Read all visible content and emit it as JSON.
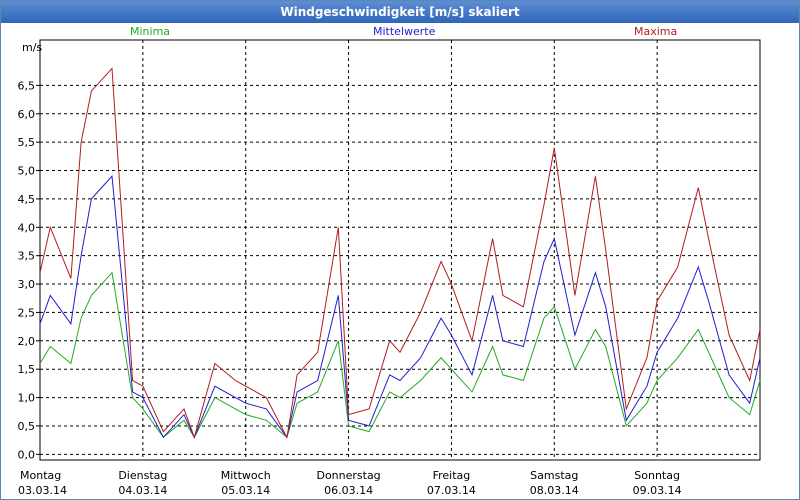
{
  "window": {
    "title": "Windgeschwindigkeit [m/s] skaliert"
  },
  "chart_data": {
    "type": "line",
    "ylabel": "m/s",
    "ylim": [
      -0.1,
      7.3
    ],
    "grid": true,
    "legend_placement": "top",
    "y_ticks": [
      "0,0",
      "0,5",
      "1,0",
      "1,5",
      "2,0",
      "2,5",
      "3,0",
      "3,5",
      "4,0",
      "4,5",
      "5,0",
      "5,5",
      "6,0",
      "6,5"
    ],
    "categories": [
      {
        "day": "Montag",
        "date": "03.03.14"
      },
      {
        "day": "Dienstag",
        "date": "04.03.14"
      },
      {
        "day": "Mittwoch",
        "date": "05.03.14"
      },
      {
        "day": "Donnerstag",
        "date": "06.03.14"
      },
      {
        "day": "Freitag",
        "date": "07.03.14"
      },
      {
        "day": "Samstag",
        "date": "08.03.14"
      },
      {
        "day": "Sonntag",
        "date": "09.03.14"
      }
    ],
    "x_range_days": [
      0,
      7
    ],
    "series": [
      {
        "name": "Minima",
        "color": "#22aa22",
        "x": [
          0,
          0.1,
          0.3,
          0.4,
          0.5,
          0.7,
          0.9,
          1.0,
          1.2,
          1.4,
          1.5,
          1.7,
          1.9,
          2.0,
          2.2,
          2.4,
          2.5,
          2.7,
          2.9,
          3.0,
          3.2,
          3.4,
          3.5,
          3.7,
          3.9,
          4.0,
          4.2,
          4.4,
          4.5,
          4.7,
          4.9,
          5.0,
          5.2,
          5.4,
          5.5,
          5.7,
          5.9,
          6.0,
          6.2,
          6.4,
          6.5,
          6.7,
          6.9,
          7.0
        ],
        "values": [
          1.6,
          1.9,
          1.6,
          2.4,
          2.8,
          3.2,
          1.0,
          0.8,
          0.3,
          0.6,
          0.3,
          1.0,
          0.8,
          0.7,
          0.6,
          0.3,
          0.9,
          1.1,
          2.0,
          0.5,
          0.4,
          1.1,
          1.0,
          1.3,
          1.7,
          1.5,
          1.1,
          1.9,
          1.4,
          1.3,
          2.4,
          2.6,
          1.5,
          2.2,
          1.9,
          0.5,
          0.9,
          1.3,
          1.7,
          2.2,
          1.8,
          1.0,
          0.7,
          1.3
        ]
      },
      {
        "name": "Mittelwerte",
        "color": "#1e1ecf",
        "x": [
          0,
          0.1,
          0.3,
          0.4,
          0.5,
          0.7,
          0.9,
          1.0,
          1.2,
          1.4,
          1.5,
          1.7,
          1.9,
          2.0,
          2.2,
          2.4,
          2.5,
          2.7,
          2.9,
          3.0,
          3.2,
          3.4,
          3.5,
          3.7,
          3.9,
          4.0,
          4.2,
          4.4,
          4.5,
          4.7,
          4.9,
          5.0,
          5.2,
          5.4,
          5.5,
          5.7,
          5.9,
          6.0,
          6.2,
          6.4,
          6.5,
          6.7,
          6.9,
          7.0
        ],
        "values": [
          2.3,
          2.8,
          2.3,
          3.5,
          4.5,
          4.9,
          1.1,
          1.0,
          0.3,
          0.7,
          0.3,
          1.2,
          1.0,
          0.9,
          0.8,
          0.3,
          1.1,
          1.3,
          2.8,
          0.6,
          0.5,
          1.4,
          1.3,
          1.7,
          2.4,
          2.1,
          1.4,
          2.8,
          2.0,
          1.9,
          3.4,
          3.8,
          2.1,
          3.2,
          2.6,
          0.6,
          1.2,
          1.8,
          2.4,
          3.3,
          2.7,
          1.4,
          0.9,
          1.7
        ]
      },
      {
        "name": "Maxima",
        "color": "#b01e1e",
        "x": [
          0,
          0.1,
          0.3,
          0.4,
          0.5,
          0.7,
          0.9,
          1.0,
          1.2,
          1.4,
          1.5,
          1.7,
          1.9,
          2.0,
          2.2,
          2.4,
          2.5,
          2.7,
          2.9,
          3.0,
          3.2,
          3.4,
          3.5,
          3.7,
          3.9,
          4.0,
          4.2,
          4.4,
          4.5,
          4.7,
          4.9,
          5.0,
          5.2,
          5.4,
          5.5,
          5.7,
          5.9,
          6.0,
          6.2,
          6.4,
          6.5,
          6.7,
          6.9,
          7.0
        ],
        "values": [
          3.2,
          4.0,
          3.1,
          5.5,
          6.4,
          6.8,
          1.3,
          1.2,
          0.4,
          0.8,
          0.3,
          1.6,
          1.3,
          1.2,
          1.0,
          0.3,
          1.4,
          1.8,
          4.0,
          0.7,
          0.8,
          2.0,
          1.8,
          2.5,
          3.4,
          3.0,
          2.0,
          3.8,
          2.8,
          2.6,
          4.4,
          5.4,
          2.8,
          4.9,
          3.6,
          0.8,
          1.7,
          2.7,
          3.3,
          4.7,
          3.8,
          2.1,
          1.3,
          2.2
        ]
      }
    ]
  }
}
